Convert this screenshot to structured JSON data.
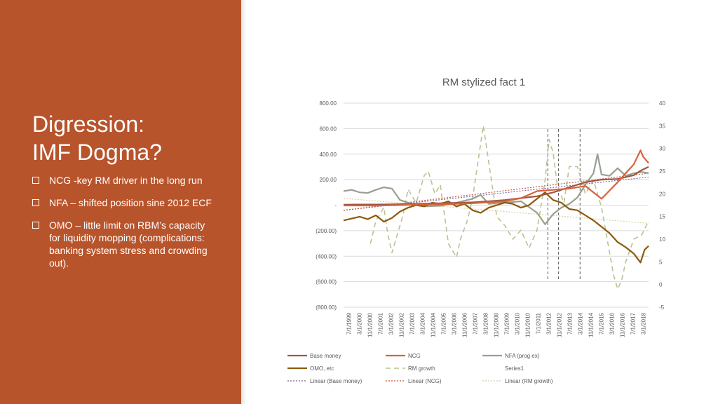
{
  "slide": {
    "title_lines": [
      "Digression:",
      "IMF Dogma?"
    ],
    "bullets": [
      "NCG -key RM driver in the long run",
      "NFA – shifted position sine 2012 ECF",
      "OMO – little limit on RBM’s capacity for liquidity mopping (complications: banking system stress and crowding out)."
    ],
    "colors": {
      "panel": "#b8542c",
      "text": "#ffffff"
    }
  },
  "chart_data": {
    "type": "line",
    "title": "RM stylized fact 1",
    "y_left": {
      "ylim": [
        -800,
        800
      ],
      "ticks": [
        800,
        600,
        400,
        200,
        0,
        -200,
        -400,
        -600,
        -800
      ],
      "tick_labels": [
        "800.00",
        "600.00",
        "400.00",
        "200.00",
        "-",
        "(200.00)",
        "(400.00)",
        "(600.00)",
        "(800.00)"
      ]
    },
    "y_right": {
      "ylim": [
        -5,
        40
      ],
      "ticks": [
        40,
        35,
        30,
        25,
        20,
        15,
        10,
        5,
        0,
        -5
      ],
      "tick_labels": [
        "40",
        "35",
        "30",
        "25",
        "20",
        "15",
        "10",
        "5",
        "0",
        "-5"
      ]
    },
    "x_range": [
      "1999-07",
      "2018-06"
    ],
    "x_tick_labels": [
      "7/1/1999",
      "3/1/2000",
      "11/1/2000",
      "7/1/2001",
      "3/1/2002",
      "11/1/2002",
      "7/1/2003",
      "3/1/2004",
      "11/1/2004",
      "7/1/2005",
      "3/1/2006",
      "11/1/2006",
      "7/1/2007",
      "3/1/2008",
      "11/1/2008",
      "7/1/2009",
      "3/1/2010",
      "11/1/2010",
      "7/1/2011",
      "3/1/2012",
      "11/1/2012",
      "7/1/2013",
      "3/1/2014",
      "11/1/2014",
      "7/1/2015",
      "3/1/2016",
      "11/1/2016",
      "7/1/2017",
      "3/1/2018"
    ],
    "vlines": [
      "2012-03",
      "2012-11",
      "2014-03"
    ],
    "grid": true,
    "legend_position": "bottom",
    "series": [
      {
        "name": "Base money",
        "axis": "left",
        "color": "#a0573f",
        "width": 2.2,
        "dash": "",
        "points": [
          [
            "1999-07",
            4
          ],
          [
            "2000-07",
            5
          ],
          [
            "2001-07",
            5
          ],
          [
            "2002-07",
            6
          ],
          [
            "2003-07",
            8
          ],
          [
            "2004-07",
            12
          ],
          [
            "2005-07",
            15
          ],
          [
            "2006-07",
            18
          ],
          [
            "2007-07",
            22
          ],
          [
            "2008-07",
            30
          ],
          [
            "2009-07",
            40
          ],
          [
            "2010-07",
            55
          ],
          [
            "2011-07",
            70
          ],
          [
            "2012-07",
            100
          ],
          [
            "2013-07",
            140
          ],
          [
            "2014-07",
            180
          ],
          [
            "2015-07",
            200
          ],
          [
            "2016-07",
            205
          ],
          [
            "2017-07",
            235
          ],
          [
            "2017-12",
            270
          ],
          [
            "2018-06",
            300
          ]
        ]
      },
      {
        "name": "NCG",
        "axis": "left",
        "color": "#d8623b",
        "width": 2.2,
        "dash": "",
        "points": [
          [
            "1999-07",
            -3
          ],
          [
            "2001-07",
            -4
          ],
          [
            "2003-07",
            2
          ],
          [
            "2005-07",
            6
          ],
          [
            "2007-07",
            15
          ],
          [
            "2009-07",
            30
          ],
          [
            "2010-07",
            55
          ],
          [
            "2011-07",
            110
          ],
          [
            "2012-07",
            120
          ],
          [
            "2013-07",
            130
          ],
          [
            "2014-07",
            150
          ],
          [
            "2015-07",
            50
          ],
          [
            "2016-07",
            180
          ],
          [
            "2017-07",
            320
          ],
          [
            "2017-12",
            430
          ],
          [
            "2018-02",
            380
          ],
          [
            "2018-06",
            330
          ]
        ]
      },
      {
        "name": "NFA (prog ex)",
        "axis": "left",
        "color": "#97a090",
        "width": 2.2,
        "dash": "",
        "points": [
          [
            "1999-07",
            110
          ],
          [
            "2000-01",
            120
          ],
          [
            "2000-07",
            100
          ],
          [
            "2001-01",
            95
          ],
          [
            "2001-07",
            120
          ],
          [
            "2002-01",
            140
          ],
          [
            "2002-07",
            130
          ],
          [
            "2003-01",
            40
          ],
          [
            "2003-07",
            20
          ],
          [
            "2004-07",
            -10
          ],
          [
            "2005-07",
            -5
          ],
          [
            "2006-07",
            20
          ],
          [
            "2007-07",
            50
          ],
          [
            "2008-01",
            80
          ],
          [
            "2008-07",
            10
          ],
          [
            "2009-07",
            20
          ],
          [
            "2010-07",
            30
          ],
          [
            "2011-07",
            -60
          ],
          [
            "2012-01",
            -150
          ],
          [
            "2012-07",
            -70
          ],
          [
            "2013-01",
            -20
          ],
          [
            "2013-07",
            10
          ],
          [
            "2014-01",
            60
          ],
          [
            "2014-07",
            160
          ],
          [
            "2015-01",
            250
          ],
          [
            "2015-04",
            400
          ],
          [
            "2015-07",
            240
          ],
          [
            "2016-01",
            230
          ],
          [
            "2016-07",
            290
          ],
          [
            "2017-01",
            230
          ],
          [
            "2017-07",
            250
          ],
          [
            "2018-01",
            260
          ],
          [
            "2018-06",
            250
          ]
        ]
      },
      {
        "name": "OMO, etc",
        "axis": "left",
        "color": "#8c5a0a",
        "width": 2.2,
        "dash": "",
        "points": [
          [
            "1999-07",
            -120
          ],
          [
            "2000-07",
            -90
          ],
          [
            "2001-01",
            -110
          ],
          [
            "2001-07",
            -80
          ],
          [
            "2002-01",
            -130
          ],
          [
            "2002-07",
            -100
          ],
          [
            "2003-01",
            -50
          ],
          [
            "2003-07",
            -20
          ],
          [
            "2004-01",
            0
          ],
          [
            "2004-07",
            -10
          ],
          [
            "2005-01",
            20
          ],
          [
            "2005-07",
            10
          ],
          [
            "2006-01",
            30
          ],
          [
            "2006-07",
            -10
          ],
          [
            "2007-01",
            10
          ],
          [
            "2007-07",
            -40
          ],
          [
            "2008-01",
            -60
          ],
          [
            "2008-07",
            -20
          ],
          [
            "2009-01",
            0
          ],
          [
            "2009-07",
            20
          ],
          [
            "2010-01",
            10
          ],
          [
            "2010-07",
            -20
          ],
          [
            "2011-01",
            0
          ],
          [
            "2011-07",
            50
          ],
          [
            "2012-01",
            100
          ],
          [
            "2012-07",
            40
          ],
          [
            "2013-01",
            20
          ],
          [
            "2013-07",
            -30
          ],
          [
            "2014-01",
            -40
          ],
          [
            "2014-07",
            -80
          ],
          [
            "2015-01",
            -120
          ],
          [
            "2015-07",
            -170
          ],
          [
            "2016-01",
            -220
          ],
          [
            "2016-07",
            -290
          ],
          [
            "2017-01",
            -330
          ],
          [
            "2017-07",
            -380
          ],
          [
            "2017-12",
            -450
          ],
          [
            "2018-03",
            -350
          ],
          [
            "2018-06",
            -320
          ]
        ]
      },
      {
        "name": "RM growth",
        "axis": "right",
        "color": "#b9c394",
        "width": 1.6,
        "dash": "7,5",
        "points": [
          [
            "2001-03",
            9
          ],
          [
            "2001-07",
            14
          ],
          [
            "2002-01",
            17
          ],
          [
            "2002-04",
            11
          ],
          [
            "2002-07",
            7
          ],
          [
            "2002-10",
            10
          ],
          [
            "2003-03",
            15
          ],
          [
            "2003-07",
            21
          ],
          [
            "2004-01",
            18
          ],
          [
            "2004-07",
            24
          ],
          [
            "2004-10",
            25
          ],
          [
            "2005-03",
            20
          ],
          [
            "2005-07",
            22
          ],
          [
            "2006-01",
            9
          ],
          [
            "2006-07",
            6
          ],
          [
            "2006-10",
            10
          ],
          [
            "2007-03",
            14
          ],
          [
            "2007-07",
            19
          ],
          [
            "2007-10",
            25
          ],
          [
            "2008-03",
            35
          ],
          [
            "2008-07",
            27
          ],
          [
            "2009-01",
            15
          ],
          [
            "2009-07",
            13
          ],
          [
            "2010-01",
            10
          ],
          [
            "2010-07",
            12
          ],
          [
            "2011-01",
            8
          ],
          [
            "2011-07",
            12
          ],
          [
            "2012-01",
            23
          ],
          [
            "2012-04",
            32
          ],
          [
            "2012-07",
            29
          ],
          [
            "2012-10",
            22
          ],
          [
            "2013-03",
            18
          ],
          [
            "2013-07",
            26
          ],
          [
            "2014-01",
            26
          ],
          [
            "2014-07",
            20
          ],
          [
            "2015-01",
            23
          ],
          [
            "2015-07",
            17
          ],
          [
            "2016-01",
            7
          ],
          [
            "2016-04",
            2
          ],
          [
            "2016-07",
            -1
          ],
          [
            "2016-10",
            1
          ],
          [
            "2017-01",
            5
          ],
          [
            "2017-07",
            10
          ],
          [
            "2018-01",
            11
          ],
          [
            "2018-06",
            14
          ]
        ]
      },
      {
        "name": "Series1",
        "axis": "right",
        "color": "#ffffff",
        "width": 0,
        "dash": "",
        "points": []
      },
      {
        "name": "Linear (Base money)",
        "axis": "left",
        "color": "#7a5fa8",
        "width": 1.1,
        "dash": "2,2",
        "points": [
          [
            "1999-07",
            -40
          ],
          [
            "2018-06",
            220
          ]
        ]
      },
      {
        "name": "Linear (NCG)",
        "axis": "left",
        "color": "#c8502e",
        "width": 1.1,
        "dash": "2,2",
        "points": [
          [
            "1999-07",
            -40
          ],
          [
            "2018-06",
            250
          ]
        ]
      },
      {
        "name": "Linear (RM growth)",
        "axis": "right",
        "color": "#d7cf98",
        "width": 1.1,
        "dash": "2,2",
        "points": [
          [
            "1999-07",
            19
          ],
          [
            "2018-06",
            13.5
          ]
        ]
      }
    ]
  }
}
